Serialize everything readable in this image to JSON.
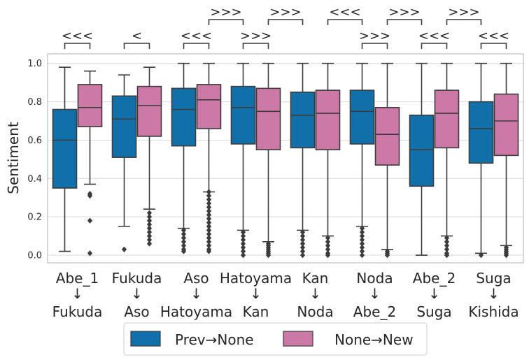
{
  "chart_data": {
    "type": "box",
    "ylabel": "Sentiment",
    "ylim": [
      -0.04,
      1.05
    ],
    "yticks": [
      "0.0",
      "0.2",
      "0.4",
      "0.6",
      "0.8",
      "1.0"
    ],
    "grid": true,
    "legend_position": "bottom",
    "colors": {
      "prev": "#1170aa",
      "new": "#cc79a7",
      "line": "#3c3c3c",
      "grid": "#d9d9d9"
    },
    "series": [
      {
        "name": "Prev→None",
        "key": "prev"
      },
      {
        "name": "None→New",
        "key": "new"
      }
    ],
    "categories": [
      {
        "top": "Abe_1",
        "arrow": "↓",
        "bottom": "Fukuda",
        "prev": {
          "whislo": 0.02,
          "q1": 0.35,
          "med": 0.6,
          "q3": 0.76,
          "whishi": 0.98,
          "fliers": []
        },
        "new": {
          "whislo": 0.37,
          "q1": 0.67,
          "med": 0.77,
          "q3": 0.89,
          "whishi": 0.96,
          "fliers": [
            0.32,
            0.31,
            0.18,
            0.01
          ]
        }
      },
      {
        "top": "Fukuda",
        "arrow": "↓",
        "bottom": "Aso",
        "prev": {
          "whislo": 0.15,
          "q1": 0.51,
          "med": 0.71,
          "q3": 0.83,
          "whishi": 0.94,
          "fliers": [
            0.03
          ]
        },
        "new": {
          "whislo": 0.24,
          "q1": 0.62,
          "med": 0.78,
          "q3": 0.88,
          "whishi": 0.98,
          "fliers": [
            0.22,
            0.2,
            0.18,
            0.16,
            0.14,
            0.12,
            0.1,
            0.08,
            0.06
          ]
        }
      },
      {
        "top": "Aso",
        "arrow": "↓",
        "bottom": "Hatoyama",
        "prev": {
          "whislo": 0.14,
          "q1": 0.57,
          "med": 0.76,
          "q3": 0.87,
          "whishi": 1.0,
          "fliers": [
            0.13,
            0.11,
            0.09,
            0.07,
            0.05,
            0.03,
            0.02
          ]
        },
        "new": {
          "whislo": 0.33,
          "q1": 0.66,
          "med": 0.81,
          "q3": 0.89,
          "whishi": 1.0,
          "fliers": [
            0.33,
            0.31,
            0.29,
            0.27,
            0.25,
            0.23,
            0.21,
            0.19,
            0.17,
            0.15,
            0.13,
            0.11,
            0.09,
            0.07,
            0.05,
            0.03,
            0.02
          ]
        }
      },
      {
        "top": "Hatoyama",
        "arrow": "↓",
        "bottom": "Kan",
        "prev": {
          "whislo": 0.13,
          "q1": 0.58,
          "med": 0.77,
          "q3": 0.88,
          "whishi": 1.0,
          "fliers": [
            0.12,
            0.1,
            0.08,
            0.06,
            0.04,
            0.02,
            0.0
          ]
        },
        "new": {
          "whislo": 0.07,
          "q1": 0.55,
          "med": 0.75,
          "q3": 0.87,
          "whishi": 1.0,
          "fliers": [
            0.06,
            0.05,
            0.04,
            0.03,
            0.02,
            0.01,
            0.0
          ]
        }
      },
      {
        "top": "Kan",
        "arrow": "↓",
        "bottom": "Noda",
        "prev": {
          "whislo": 0.13,
          "q1": 0.56,
          "med": 0.73,
          "q3": 0.85,
          "whishi": 1.0,
          "fliers": [
            0.12,
            0.1,
            0.08,
            0.06,
            0.04,
            0.02,
            0.0
          ]
        },
        "new": {
          "whislo": 0.1,
          "q1": 0.55,
          "med": 0.74,
          "q3": 0.86,
          "whishi": 1.0,
          "fliers": [
            0.09,
            0.07,
            0.05,
            0.03,
            0.01,
            0.0
          ]
        }
      },
      {
        "top": "Noda",
        "arrow": "↓",
        "bottom": "Abe_2",
        "prev": {
          "whislo": 0.15,
          "q1": 0.58,
          "med": 0.75,
          "q3": 0.86,
          "whishi": 1.0,
          "fliers": [
            0.14,
            0.12,
            0.1,
            0.08,
            0.06,
            0.04,
            0.02,
            0.0
          ]
        },
        "new": {
          "whislo": 0.03,
          "q1": 0.47,
          "med": 0.63,
          "q3": 0.77,
          "whishi": 1.0,
          "fliers": [
            0.02,
            0.01,
            0.0
          ]
        }
      },
      {
        "top": "Abe_2",
        "arrow": "↓",
        "bottom": "Suga",
        "prev": {
          "whislo": 0.0,
          "q1": 0.36,
          "med": 0.55,
          "q3": 0.73,
          "whishi": 1.0,
          "fliers": []
        },
        "new": {
          "whislo": 0.1,
          "q1": 0.56,
          "med": 0.74,
          "q3": 0.86,
          "whishi": 1.0,
          "fliers": [
            0.09,
            0.07,
            0.05,
            0.03,
            0.01,
            0.0
          ]
        }
      },
      {
        "top": "Suga",
        "arrow": "↓",
        "bottom": "Kishida",
        "prev": {
          "whislo": 0.01,
          "q1": 0.48,
          "med": 0.66,
          "q3": 0.8,
          "whishi": 1.0,
          "fliers": [
            0.0
          ]
        },
        "new": {
          "whislo": 0.05,
          "q1": 0.52,
          "med": 0.7,
          "q3": 0.84,
          "whishi": 1.0,
          "fliers": [
            0.04,
            0.03,
            0.02,
            0.01,
            0.0
          ]
        }
      }
    ],
    "significance": [
      {
        "label": "<<<",
        "from": [
          0,
          "prev"
        ],
        "to": [
          0,
          "new"
        ],
        "level": 1
      },
      {
        "label": "<",
        "from": [
          1,
          "prev"
        ],
        "to": [
          1,
          "new"
        ],
        "level": 1
      },
      {
        "label": "<<<",
        "from": [
          2,
          "prev"
        ],
        "to": [
          2,
          "new"
        ],
        "level": 1
      },
      {
        "label": ">>>",
        "from": [
          3,
          "prev"
        ],
        "to": [
          3,
          "new"
        ],
        "level": 1
      },
      {
        "label": ">>>",
        "from": [
          5,
          "prev"
        ],
        "to": [
          5,
          "new"
        ],
        "level": 1
      },
      {
        "label": "<<<",
        "from": [
          6,
          "prev"
        ],
        "to": [
          6,
          "new"
        ],
        "level": 1
      },
      {
        "label": "<<<",
        "from": [
          7,
          "prev"
        ],
        "to": [
          7,
          "new"
        ],
        "level": 1
      },
      {
        "label": ">>>",
        "from": [
          2,
          "new"
        ],
        "to": [
          3,
          "prev"
        ],
        "level": 2
      },
      {
        "label": ">>>",
        "from": [
          3,
          "new"
        ],
        "to": [
          4,
          "prev"
        ],
        "level": 2
      },
      {
        "label": "<<<",
        "from": [
          4,
          "new"
        ],
        "to": [
          5,
          "prev"
        ],
        "level": 2
      },
      {
        "label": ">>>",
        "from": [
          5,
          "new"
        ],
        "to": [
          6,
          "prev"
        ],
        "level": 2
      },
      {
        "label": ">>>",
        "from": [
          6,
          "new"
        ],
        "to": [
          7,
          "prev"
        ],
        "level": 2
      }
    ]
  }
}
